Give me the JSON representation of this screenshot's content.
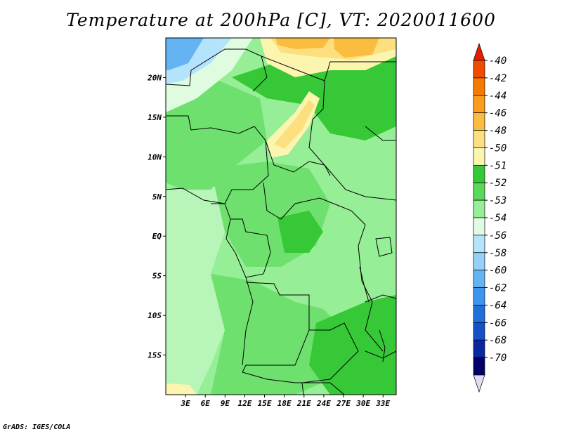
{
  "title": "Temperature at 200hPa [C], VT: 2020011600",
  "credit": "GrADS: IGES/COLA",
  "map": {
    "lon_labels": [
      "3E",
      "6E",
      "9E",
      "12E",
      "15E",
      "18E",
      "21E",
      "24E",
      "27E",
      "30E",
      "33E"
    ],
    "lon_values": [
      3,
      6,
      9,
      12,
      15,
      18,
      21,
      24,
      27,
      30,
      33
    ],
    "lat_labels": [
      "20N",
      "15N",
      "10N",
      "5N",
      "EQ",
      "5S",
      "10S",
      "15S"
    ],
    "lat_values": [
      20,
      15,
      10,
      5,
      0,
      -5,
      -10,
      -15
    ],
    "lon_range": [
      0,
      35
    ],
    "lat_range": [
      -20,
      25
    ]
  },
  "colorbar": {
    "levels": [
      "-40",
      "-42",
      "-44",
      "-46",
      "-48",
      "-50",
      "-51",
      "-52",
      "-53",
      "-54",
      "-56",
      "-58",
      "-60",
      "-62",
      "-64",
      "-66",
      "-68",
      "-70"
    ],
    "colors": [
      "#e61e00",
      "#f24a00",
      "#f77a00",
      "#fb9c1c",
      "#fbbd40",
      "#fce080",
      "#fcf5b0",
      "#36c836",
      "#5ad85a",
      "#96ee96",
      "#e0fce0",
      "#b4e4fc",
      "#96d0f8",
      "#64b4f4",
      "#3c96f0",
      "#1e6edc",
      "#1450c8",
      "#0a28a0",
      "#000066",
      "#e0dcf8"
    ]
  },
  "colors": {
    "green_dark": "#36c836",
    "green_mid": "#6ee06e",
    "green_light": "#96ee96",
    "green_pale": "#b8f5b8",
    "cyan_pale": "#e0fce0",
    "blue_light": "#b4e4fc",
    "blue_mid": "#64b4f4",
    "yellow_pale": "#fcf5b0",
    "yellow": "#fce080",
    "orange": "#fbbd40"
  }
}
